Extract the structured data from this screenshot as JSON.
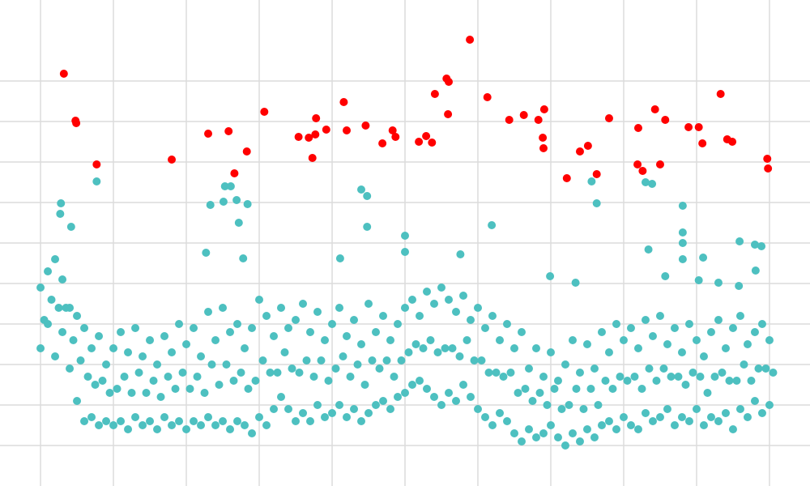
{
  "chart_data": {
    "type": "scatter",
    "grid": true,
    "xlim": [
      -0.556,
      10.556
    ],
    "ylim": [
      -1,
      11
    ],
    "xticks": [
      0,
      1,
      2,
      3,
      4,
      5,
      6,
      7,
      8,
      9,
      10
    ],
    "yticks": [
      0,
      1,
      2,
      3,
      4,
      5,
      6,
      7,
      8,
      9
    ],
    "series": [
      {
        "color": "#4dc0c0",
        "x": [
          0.0,
          0.05,
          0.0,
          0.1,
          0.15,
          0.1,
          0.2,
          0.25,
          0.2,
          0.3,
          0.35,
          0.3,
          0.4,
          0.45,
          0.4,
          0.5,
          0.55,
          0.5,
          0.6,
          0.65,
          0.6,
          0.7,
          0.75,
          0.7,
          0.8,
          0.85,
          0.8,
          0.9,
          0.95,
          0.9,
          1.0,
          1.05,
          1.0,
          1.1,
          1.15,
          1.1,
          1.2,
          1.25,
          1.2,
          1.3,
          1.35,
          1.3,
          1.4,
          1.45,
          1.4,
          1.5,
          1.55,
          1.5,
          1.6,
          1.65,
          1.6,
          1.7,
          1.75,
          1.7,
          1.8,
          1.85,
          1.8,
          1.9,
          1.95,
          1.9,
          2.0,
          2.05,
          2.0,
          2.1,
          2.15,
          2.1,
          2.2,
          2.25,
          2.2,
          2.3,
          2.35,
          2.3,
          2.4,
          2.45,
          2.4,
          2.5,
          2.55,
          2.5,
          2.6,
          2.65,
          2.6,
          2.7,
          2.75,
          2.7,
          2.8,
          2.85,
          2.8,
          2.9,
          2.95,
          2.9,
          3.0,
          3.05,
          3.0,
          3.1,
          3.15,
          3.1,
          3.2,
          3.25,
          3.2,
          3.3,
          3.35,
          3.3,
          3.4,
          3.45,
          3.4,
          3.5,
          3.55,
          3.5,
          3.6,
          3.65,
          3.6,
          3.7,
          3.75,
          3.7,
          3.8,
          3.85,
          3.8,
          3.9,
          3.95,
          3.9,
          4.0,
          4.05,
          4.0,
          4.1,
          4.15,
          4.1,
          4.2,
          4.25,
          4.2,
          4.3,
          4.35,
          4.3,
          4.4,
          4.45,
          4.4,
          4.5,
          4.55,
          4.5,
          4.6,
          4.65,
          4.6,
          4.7,
          4.75,
          4.7,
          4.8,
          4.85,
          4.8,
          4.9,
          4.95,
          4.9,
          5.0,
          5.05,
          5.0,
          5.1,
          5.15,
          5.1,
          5.2,
          5.25,
          5.2,
          5.3,
          5.35,
          5.3,
          5.4,
          5.45,
          5.4,
          5.5,
          5.55,
          5.5,
          5.6,
          5.65,
          5.6,
          5.7,
          5.75,
          5.7,
          5.8,
          5.85,
          5.8,
          5.9,
          5.95,
          5.9,
          6.0,
          6.05,
          6.0,
          6.1,
          6.15,
          6.1,
          6.2,
          6.25,
          6.2,
          6.3,
          6.35,
          6.3,
          6.4,
          6.45,
          6.4,
          6.5,
          6.55,
          6.5,
          6.6,
          6.65,
          6.6,
          6.7,
          6.75,
          6.7,
          6.8,
          6.85,
          6.8,
          6.9,
          6.95,
          6.9,
          7.0,
          7.05,
          7.0,
          7.1,
          7.15,
          7.1,
          7.2,
          7.25,
          7.2,
          7.3,
          7.35,
          7.3,
          7.4,
          7.45,
          7.4,
          7.5,
          7.55,
          7.5,
          7.6,
          7.65,
          7.6,
          7.7,
          7.75,
          7.7,
          7.8,
          7.85,
          7.8,
          7.9,
          7.95,
          7.9,
          8.0,
          8.05,
          8.0,
          8.1,
          8.15,
          8.1,
          8.2,
          8.25,
          8.2,
          8.3,
          8.35,
          8.3,
          8.4,
          8.45,
          8.4,
          8.5,
          8.55,
          8.5,
          8.6,
          8.65,
          8.6,
          8.7,
          8.75,
          8.7,
          8.8,
          8.85,
          8.8,
          8.9,
          8.95,
          8.9,
          9.0,
          9.05,
          9.0,
          9.1,
          9.15,
          9.1,
          9.2,
          9.25,
          9.2,
          9.3,
          9.35,
          9.3,
          9.4,
          9.45,
          9.4,
          9.5,
          9.55,
          9.5,
          9.6,
          9.65,
          9.6,
          9.7,
          9.75,
          9.7,
          9.8,
          9.85,
          9.8,
          9.9,
          9.95,
          9.9,
          10.0,
          10.05,
          10.0,
          0.28,
          0.27,
          0.77,
          0.42,
          2.33,
          2.53,
          2.61,
          2.51,
          2.69,
          2.72,
          2.84,
          2.78,
          2.27,
          4.4,
          4.48,
          4.48,
          5.0,
          5.0,
          4.11,
          6.19,
          5.76,
          7.56,
          7.63,
          8.3,
          8.39,
          8.81,
          8.81,
          8.81,
          8.81,
          8.34,
          9.09,
          9.59,
          9.8,
          9.89,
          9.81,
          8.57,
          6.99,
          7.34,
          9.03,
          9.3,
          9.58
        ],
        "values": [
          2.4,
          3.1,
          3.9,
          3.0,
          3.6,
          4.3,
          2.2,
          3.4,
          4.6,
          2.8,
          3.4,
          4.1,
          1.9,
          2.6,
          3.4,
          1.1,
          2.1,
          3.2,
          0.6,
          1.7,
          2.9,
          0.7,
          1.5,
          2.4,
          0.5,
          1.6,
          2.7,
          0.6,
          1.3,
          2.0,
          0.5,
          1.4,
          2.4,
          0.6,
          1.7,
          2.8,
          0.4,
          1.3,
          2.3,
          0.7,
          1.8,
          2.9,
          0.5,
          1.3,
          2.2,
          0.6,
          1.6,
          2.6,
          0.4,
          1.2,
          2.0,
          0.7,
          1.7,
          2.7,
          0.5,
          1.4,
          2.3,
          0.6,
          1.8,
          3.0,
          0.4,
          1.4,
          2.5,
          0.6,
          1.7,
          2.9,
          0.5,
          1.3,
          2.2,
          0.7,
          2.0,
          3.3,
          0.5,
          1.5,
          2.6,
          0.6,
          2.0,
          3.4,
          0.4,
          1.6,
          2.8,
          0.6,
          1.8,
          3.0,
          0.5,
          1.4,
          2.4,
          0.3,
          1.6,
          2.9,
          0.7,
          2.1,
          3.6,
          0.5,
          1.8,
          3.2,
          0.9,
          1.8,
          2.7,
          1.2,
          2.3,
          3.4,
          0.9,
          1.9,
          2.9,
          0.6,
          1.8,
          3.1,
          0.8,
          2.1,
          3.5,
          0.6,
          1.7,
          2.8,
          1.0,
          2.1,
          3.3,
          0.7,
          1.6,
          2.6,
          0.8,
          1.9,
          3.0,
          1.0,
          2.2,
          3.4,
          0.7,
          1.7,
          2.7,
          0.9,
          2.0,
          3.1,
          0.6,
          1.5,
          2.5,
          0.8,
          2.1,
          3.5,
          1.0,
          1.9,
          2.8,
          1.1,
          2.1,
          3.2,
          0.9,
          1.7,
          2.6,
          1.2,
          2.1,
          3.0,
          1.3,
          2.3,
          3.4,
          1.5,
          2.5,
          3.6,
          1.6,
          2.4,
          3.2,
          1.4,
          2.6,
          3.8,
          1.2,
          2.3,
          3.5,
          1.0,
          2.4,
          3.9,
          1.3,
          2.4,
          3.6,
          1.1,
          2.2,
          3.3,
          1.5,
          2.6,
          3.7,
          1.2,
          2.1,
          3.1,
          0.9,
          2.1,
          3.4,
          0.7,
          1.8,
          2.9,
          0.5,
          1.8,
          3.2,
          0.8,
          1.7,
          2.6,
          0.6,
          1.8,
          3.0,
          0.3,
          1.3,
          2.4,
          0.1,
          1.4,
          2.8,
          0.4,
          1.1,
          1.9,
          0.2,
          1.3,
          2.4,
          0.3,
          1.0,
          1.7,
          0.5,
          1.4,
          2.3,
          0.2,
          0.9,
          1.6,
          0.0,
          1.0,
          2.0,
          0.3,
          1.4,
          2.6,
          0.1,
          0.9,
          1.8,
          0.4,
          1.4,
          2.5,
          0.2,
          1.0,
          1.9,
          0.5,
          1.6,
          2.8,
          0.6,
          1.4,
          2.3,
          0.4,
          1.7,
          3.0,
          0.7,
          1.6,
          2.6,
          0.5,
          1.7,
          2.9,
          0.4,
          1.4,
          2.4,
          0.8,
          1.9,
          3.1,
          0.6,
          1.6,
          2.7,
          0.7,
          1.9,
          3.2,
          0.9,
          1.7,
          2.5,
          0.5,
          1.7,
          2.9,
          0.7,
          1.5,
          2.3,
          0.6,
          1.8,
          3.0,
          0.9,
          1.7,
          2.6,
          0.5,
          1.3,
          2.2,
          0.7,
          1.7,
          2.8,
          0.6,
          1.8,
          3.1,
          0.8,
          1.6,
          2.4,
          0.4,
          1.6,
          2.9,
          0.9,
          2.0,
          3.2,
          0.7,
          1.6,
          2.5,
          1.1,
          1.9,
          2.8,
          0.8,
          1.9,
          3.0,
          1.0,
          1.8,
          2.6,
          5.98,
          5.72,
          6.52,
          5.4,
          5.94,
          6.4,
          6.4,
          6.02,
          6.06,
          5.5,
          5.96,
          4.62,
          4.76,
          6.32,
          6.16,
          5.4,
          5.18,
          4.78,
          4.62,
          5.44,
          4.72,
          6.52,
          5.98,
          6.5,
          6.46,
          5.92,
          5.26,
          5.0,
          4.6,
          4.84,
          4.64,
          5.04,
          4.96,
          4.92,
          4.32,
          4.18,
          4.18,
          4.02,
          4.08,
          4.02,
          3.94
        ]
      },
      {
        "color": "#ff0000",
        "x": [
          0.32,
          0.48,
          0.49,
          0.77,
          1.8,
          2.3,
          2.58,
          2.66,
          2.83,
          3.07,
          3.54,
          3.68,
          3.77,
          3.78,
          3.73,
          3.92,
          4.16,
          4.2,
          4.46,
          4.69,
          4.83,
          4.87,
          5.19,
          5.29,
          5.37,
          5.41,
          5.57,
          5.6,
          5.59,
          5.89,
          6.13,
          6.43,
          6.63,
          6.83,
          6.91,
          6.89,
          6.9,
          7.22,
          7.4,
          7.51,
          7.63,
          7.8,
          8.2,
          8.19,
          8.26,
          8.43,
          8.5,
          8.57,
          8.89,
          9.03,
          9.08,
          9.33,
          9.42,
          9.49,
          9.97,
          9.98
        ],
        "values": [
          9.18,
          8.02,
          7.96,
          6.94,
          7.06,
          7.7,
          7.76,
          6.72,
          7.26,
          8.24,
          7.62,
          7.6,
          7.68,
          8.08,
          7.1,
          7.8,
          8.48,
          7.78,
          7.9,
          7.46,
          7.78,
          7.62,
          7.5,
          7.64,
          7.48,
          8.68,
          9.06,
          8.98,
          8.18,
          10.02,
          8.6,
          8.04,
          8.16,
          8.04,
          8.3,
          7.6,
          7.34,
          6.6,
          7.26,
          7.4,
          6.7,
          8.08,
          7.84,
          6.94,
          6.78,
          8.3,
          6.94,
          8.04,
          7.86,
          7.86,
          7.46,
          8.68,
          7.56,
          7.5,
          7.08,
          6.84
        ]
      }
    ]
  }
}
